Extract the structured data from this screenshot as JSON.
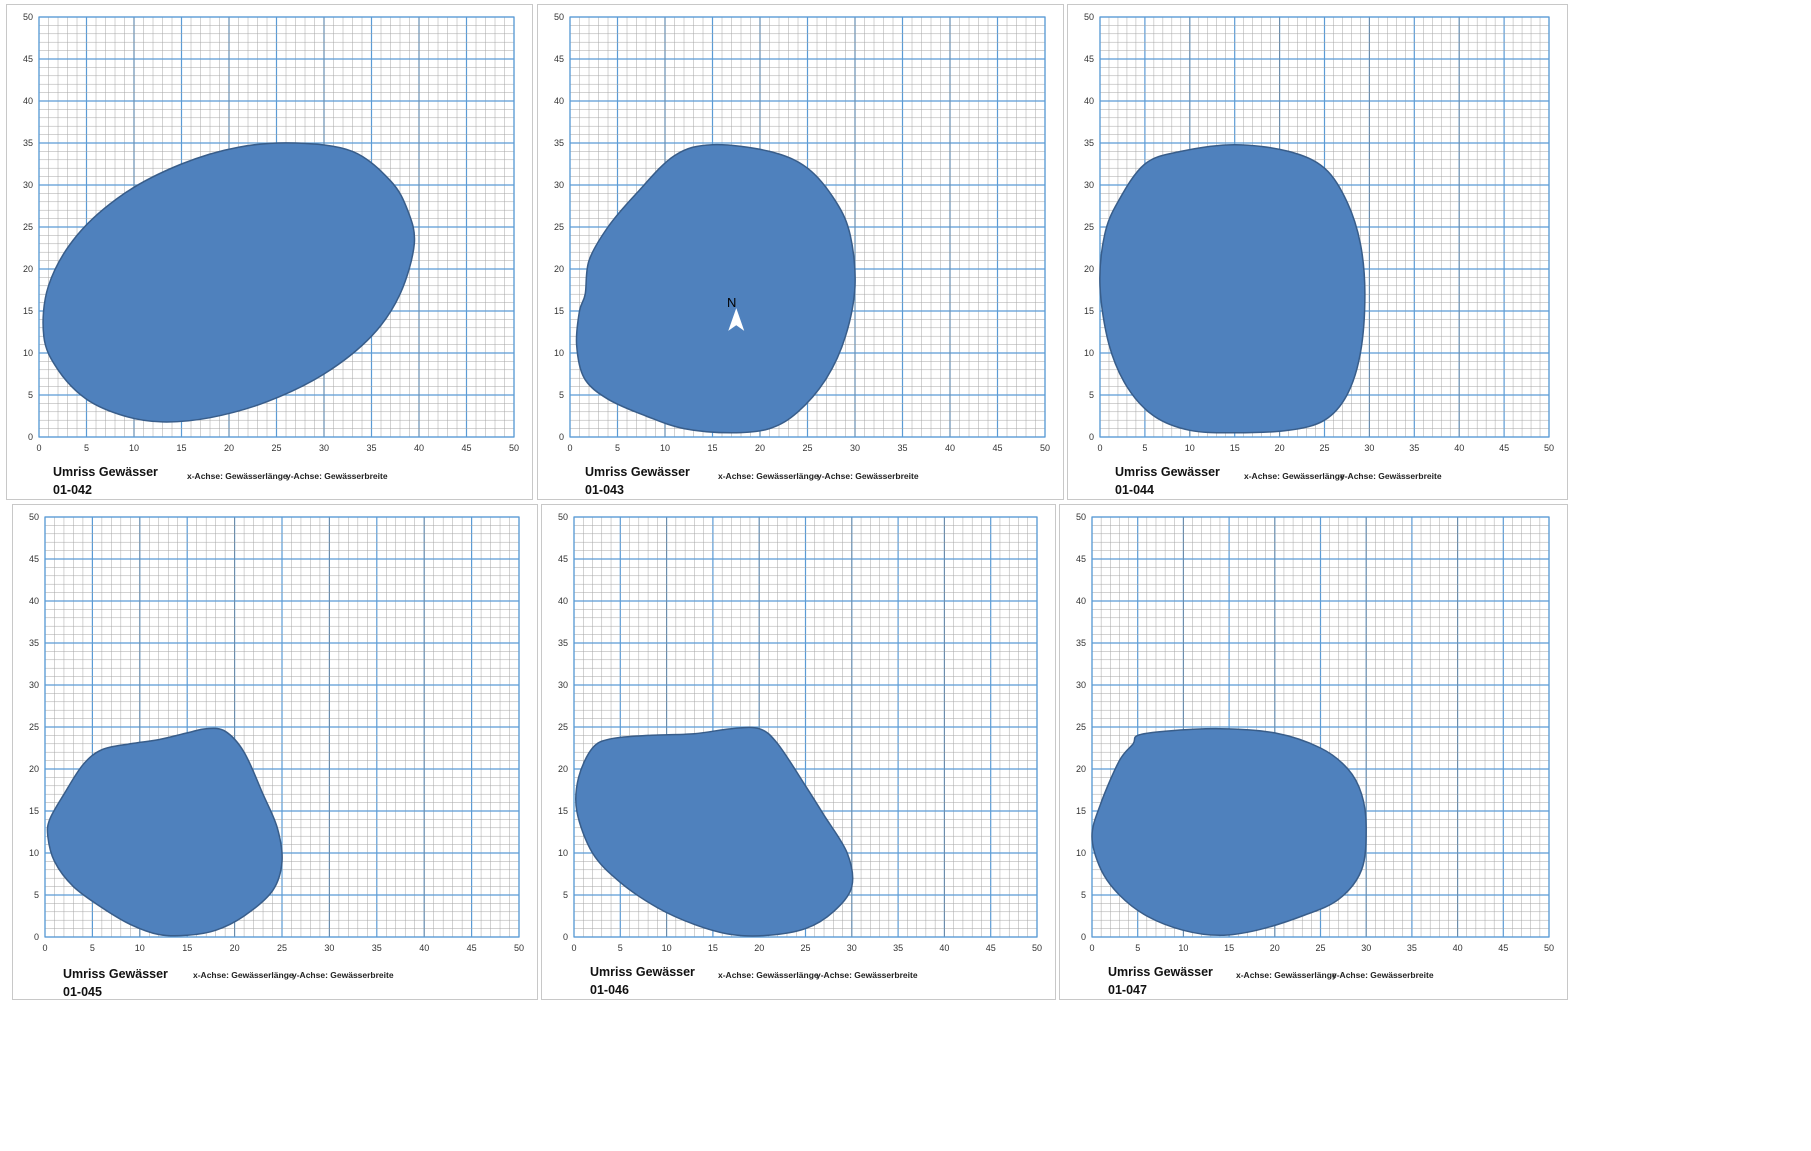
{
  "axis_notes": {
    "x": "x-Achse: Gewässerlänge",
    "y": "y-Achse: Gewässerbreite"
  },
  "colors": {
    "fill": "#4f81bd",
    "outline": "#385d8a",
    "grid_minor": "#a6a6a6",
    "grid_major": "#5b9bd5",
    "grid_mid": "#7f7f7f"
  },
  "chart_data": [
    {
      "type": "area",
      "title": "Umriss Gewässer",
      "subtitle": "01-042",
      "xlim": [
        0,
        50
      ],
      "ylim": [
        0,
        50
      ],
      "xticks": [
        0,
        5,
        10,
        15,
        20,
        25,
        30,
        35,
        40,
        45,
        50
      ],
      "yticks": [
        0,
        5,
        10,
        15,
        20,
        25,
        30,
        35,
        40,
        45,
        50
      ],
      "grid": true,
      "outline": [
        [
          0.5,
          12
        ],
        [
          2,
          8
        ],
        [
          5,
          4.5
        ],
        [
          9,
          2.5
        ],
        [
          13,
          1.8
        ],
        [
          18,
          2.3
        ],
        [
          24,
          4.2
        ],
        [
          30,
          7.5
        ],
        [
          35,
          12
        ],
        [
          38,
          17
        ],
        [
          39.5,
          23
        ],
        [
          38.8,
          27
        ],
        [
          37,
          30.5
        ],
        [
          33,
          34
        ],
        [
          27,
          35
        ],
        [
          21,
          34.5
        ],
        [
          15,
          32.5
        ],
        [
          9,
          29
        ],
        [
          4,
          24
        ],
        [
          1,
          18
        ]
      ]
    },
    {
      "type": "area",
      "title": "Umriss Gewässer",
      "subtitle": "01-043",
      "xlim": [
        0,
        50
      ],
      "ylim": [
        0,
        50
      ],
      "xticks": [
        0,
        5,
        10,
        15,
        20,
        25,
        30,
        35,
        40,
        45,
        50
      ],
      "yticks": [
        0,
        5,
        10,
        15,
        20,
        25,
        30,
        35,
        40,
        45,
        50
      ],
      "grid": true,
      "annotation": "N",
      "outline": [
        [
          0.7,
          11
        ],
        [
          1.5,
          7
        ],
        [
          4,
          4.5
        ],
        [
          8,
          2.5
        ],
        [
          12,
          1
        ],
        [
          17,
          0.5
        ],
        [
          21,
          1
        ],
        [
          24,
          3
        ],
        [
          27,
          7
        ],
        [
          29,
          12
        ],
        [
          30,
          18
        ],
        [
          29.5,
          24
        ],
        [
          28,
          28
        ],
        [
          25,
          32
        ],
        [
          21,
          34
        ],
        [
          15,
          34.8
        ],
        [
          11,
          33.5
        ],
        [
          7,
          29
        ],
        [
          4,
          25
        ],
        [
          2,
          21
        ],
        [
          1.6,
          17
        ],
        [
          1,
          15
        ]
      ]
    },
    {
      "type": "area",
      "title": "Umriss Gewässer",
      "subtitle": "01-044",
      "xlim": [
        0,
        50
      ],
      "ylim": [
        0,
        50
      ],
      "xticks": [
        0,
        5,
        10,
        15,
        20,
        25,
        30,
        35,
        40,
        45,
        50
      ],
      "yticks": [
        0,
        5,
        10,
        15,
        20,
        25,
        30,
        35,
        40,
        45,
        50
      ],
      "grid": true,
      "outline": [
        [
          0,
          18
        ],
        [
          1,
          11
        ],
        [
          3,
          6
        ],
        [
          6,
          2.5
        ],
        [
          10,
          0.8
        ],
        [
          15,
          0.5
        ],
        [
          21,
          0.8
        ],
        [
          25,
          2
        ],
        [
          27.5,
          5
        ],
        [
          29,
          10
        ],
        [
          29.5,
          17
        ],
        [
          29,
          23
        ],
        [
          27.5,
          28
        ],
        [
          25,
          32
        ],
        [
          21,
          34
        ],
        [
          15,
          34.8
        ],
        [
          9,
          34
        ],
        [
          5,
          32.5
        ],
        [
          2,
          28
        ],
        [
          0.5,
          24
        ]
      ]
    },
    {
      "type": "area",
      "title": "Umriss Gewässer",
      "subtitle": "01-045",
      "xlim": [
        0,
        50
      ],
      "ylim": [
        0,
        50
      ],
      "xticks": [
        0,
        5,
        10,
        15,
        20,
        25,
        30,
        35,
        40,
        45,
        50
      ],
      "yticks": [
        0,
        5,
        10,
        15,
        20,
        25,
        30,
        35,
        40,
        45,
        50
      ],
      "grid": true,
      "outline": [
        [
          0.3,
          12
        ],
        [
          1,
          9
        ],
        [
          3,
          6
        ],
        [
          6,
          3.5
        ],
        [
          9,
          1.5
        ],
        [
          12,
          0.3
        ],
        [
          15,
          0.2
        ],
        [
          18,
          0.8
        ],
        [
          21,
          2.5
        ],
        [
          24,
          5.5
        ],
        [
          25,
          9
        ],
        [
          24.5,
          13
        ],
        [
          23,
          17
        ],
        [
          21,
          22
        ],
        [
          19,
          24.5
        ],
        [
          17,
          24.8
        ],
        [
          15,
          24.3
        ],
        [
          12,
          23.5
        ],
        [
          9,
          23
        ],
        [
          6,
          22.3
        ],
        [
          4,
          20.5
        ],
        [
          2,
          17
        ],
        [
          0.5,
          14
        ]
      ]
    },
    {
      "type": "area",
      "title": "Umriss Gewässer",
      "subtitle": "01-046",
      "xlim": [
        0,
        50
      ],
      "ylim": [
        0,
        50
      ],
      "xticks": [
        0,
        5,
        10,
        15,
        20,
        25,
        30,
        35,
        40,
        45,
        50
      ],
      "yticks": [
        0,
        5,
        10,
        15,
        20,
        25,
        30,
        35,
        40,
        45,
        50
      ],
      "grid": true,
      "outline": [
        [
          0.3,
          15
        ],
        [
          2,
          10
        ],
        [
          5,
          6.5
        ],
        [
          9,
          3.5
        ],
        [
          13,
          1.5
        ],
        [
          17,
          0.3
        ],
        [
          21,
          0.2
        ],
        [
          25,
          1
        ],
        [
          28,
          3
        ],
        [
          30,
          6
        ],
        [
          29.5,
          10
        ],
        [
          27,
          14.5
        ],
        [
          25,
          18
        ],
        [
          22,
          23
        ],
        [
          20,
          24.8
        ],
        [
          17,
          24.8
        ],
        [
          13,
          24.2
        ],
        [
          8,
          24
        ],
        [
          4,
          23.6
        ],
        [
          2,
          22.5
        ],
        [
          0.5,
          19
        ]
      ]
    },
    {
      "type": "area",
      "title": "Umriss Gewässer",
      "subtitle": "01-047",
      "xlim": [
        0,
        50
      ],
      "ylim": [
        0,
        50
      ],
      "xticks": [
        0,
        5,
        10,
        15,
        20,
        25,
        30,
        35,
        40,
        45,
        50
      ],
      "yticks": [
        0,
        5,
        10,
        15,
        20,
        25,
        30,
        35,
        40,
        45,
        50
      ],
      "grid": true,
      "outline": [
        [
          0,
          12
        ],
        [
          1,
          8
        ],
        [
          3,
          5
        ],
        [
          6,
          2.5
        ],
        [
          10,
          0.8
        ],
        [
          14,
          0.2
        ],
        [
          18,
          0.8
        ],
        [
          23,
          2.5
        ],
        [
          27,
          4.5
        ],
        [
          29.5,
          8
        ],
        [
          30,
          13
        ],
        [
          29.5,
          17
        ],
        [
          28,
          20
        ],
        [
          25,
          22.5
        ],
        [
          20,
          24.3
        ],
        [
          14,
          24.8
        ],
        [
          8,
          24.5
        ],
        [
          5,
          24
        ],
        [
          4.5,
          23
        ],
        [
          3,
          21
        ],
        [
          1,
          16
        ]
      ]
    }
  ]
}
